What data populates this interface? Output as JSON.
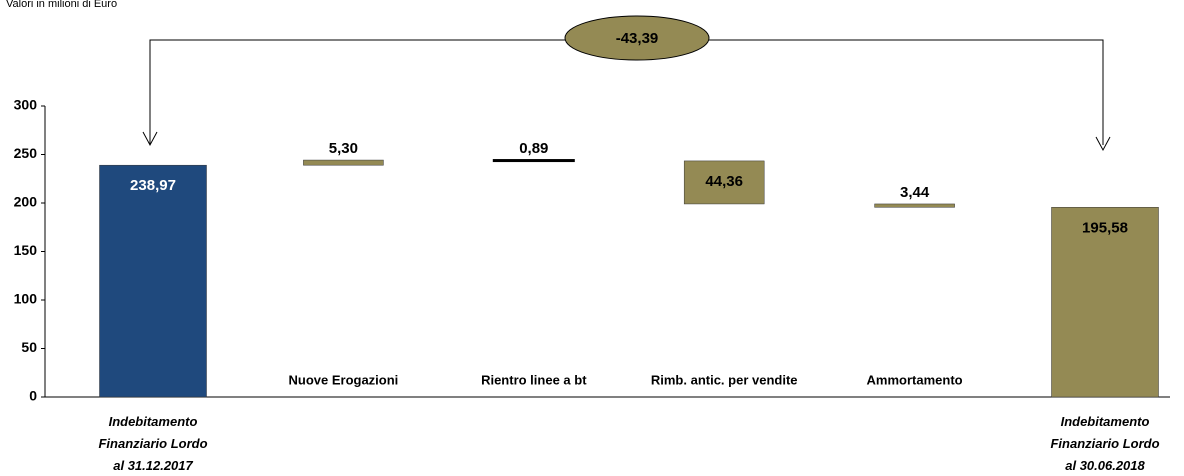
{
  "chart_data": {
    "type": "waterfall",
    "subtitle": "Valori in milioni di Euro",
    "categories": [
      "Indebitamento\nFinanziario  Lordo\nal 31.12.2017",
      "Nuove Erogazioni",
      "Rientro linee a bt",
      "Rimb. antic. per vendite",
      "Ammortamento",
      "Indebitamento\nFinanziario  Lordo\nal 30.06.2018"
    ],
    "values": [
      238.97,
      5.3,
      -0.89,
      -44.36,
      -3.44,
      195.58
    ],
    "value_labels": [
      "238,97",
      "5,30",
      "0,89",
      "44,36",
      "3,44",
      "195,58"
    ],
    "colors": [
      "#1f497d",
      "#948a54",
      "#948a54",
      "#948a54",
      "#948a54",
      "#948a54"
    ],
    "annotation": {
      "value": -43.39,
      "label": "-43,39"
    },
    "ylim": [
      0,
      300
    ],
    "yticks": [
      0,
      50,
      100,
      150,
      200,
      250,
      300
    ],
    "grid": false
  }
}
